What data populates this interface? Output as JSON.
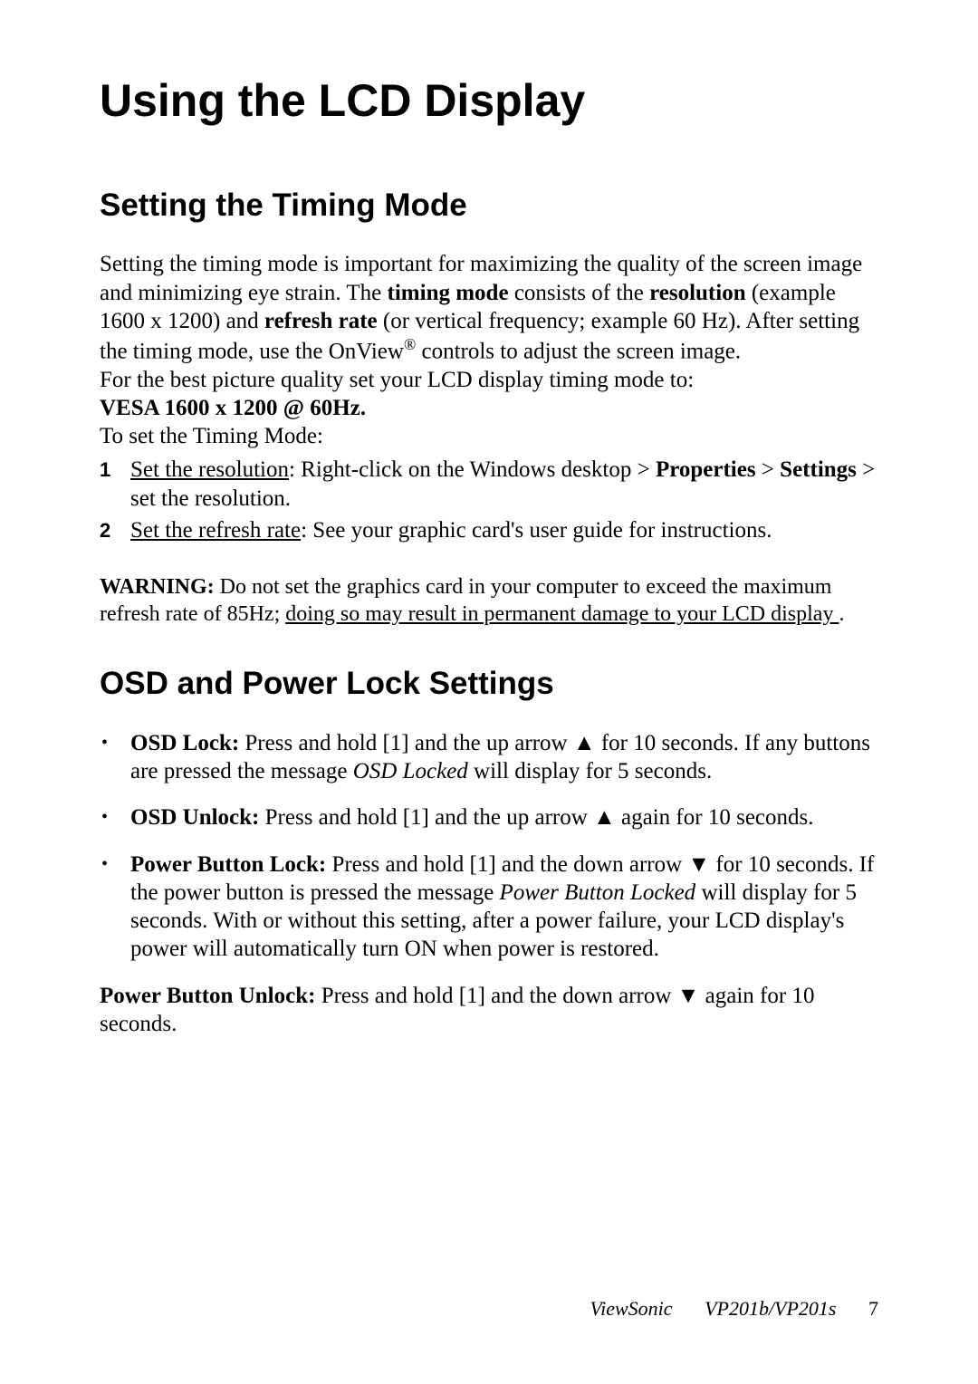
{
  "page": {
    "title": "Using the LCD Display",
    "footer_brand": "ViewSonic",
    "footer_model": "VP201b/VP201s",
    "footer_page": "7"
  },
  "section1": {
    "title": "Setting the Timing Mode",
    "para_part1": "Setting the timing mode is important for maximizing the quality of the screen image and minimizing eye strain. The ",
    "b_timing_mode": "timing mode",
    "para_part2": " consists of the ",
    "b_resolution": "resolution",
    "para_part3": " (example 1600 x 1200) and ",
    "b_refresh_rate": "refresh rate",
    "para_part4": " (or vertical frequency; example 60 Hz). After setting the timing mode, use the OnView",
    "reg_mark": "®",
    "para_part5": " controls to adjust the screen image.",
    "line2": "For the best picture quality set your LCD display timing mode to:",
    "vesa_line": "VESA 1600 x 1200 @ 60Hz.",
    "line3": "To set the Timing Mode:",
    "ol": [
      {
        "num": "1",
        "u": "Set the resolution",
        "t1": ": Right-click on the Windows desktop > ",
        "b1": "Properties",
        "t2": " > ",
        "b2": "Settings",
        "t3": " > set the resolution."
      },
      {
        "num": "2",
        "u": "Set the refresh rate",
        "t1": ": See your graphic card's user guide for instructions."
      }
    ],
    "warn_label": "WARNING:",
    "warn_t1": " Do not set the graphics card in your computer to exceed the maximum refresh rate of 85Hz; ",
    "warn_u": "doing so may result in permanent damage to your LCD display ",
    "warn_t2": "."
  },
  "section2": {
    "title": "OSD and Power Lock Settings",
    "items": [
      {
        "b": "OSD Lock:",
        "t1": " Press and hold [1] and the up arrow ▲ for 10 seconds. If any buttons are pressed the message ",
        "i": "OSD Locked",
        "t2": " will display for 5 seconds."
      },
      {
        "b": "OSD Unlock:",
        "t1": " Press and hold [1] and the up arrow ▲ again for 10 seconds."
      },
      {
        "b": "Power Button Lock:",
        "t1": " Press and hold [1] and the down arrow ▼ for 10 seconds. If the power button is pressed the message ",
        "i": "Power Button Locked",
        "t2": " will display for 5 seconds. With or without this setting, after a power failure, your LCD display's power will automatically turn ON when power is restored."
      }
    ],
    "final_b": "Power Button Unlock:",
    "final_t": " Press and hold [1] and the down arrow ▼ again for 10 seconds."
  }
}
